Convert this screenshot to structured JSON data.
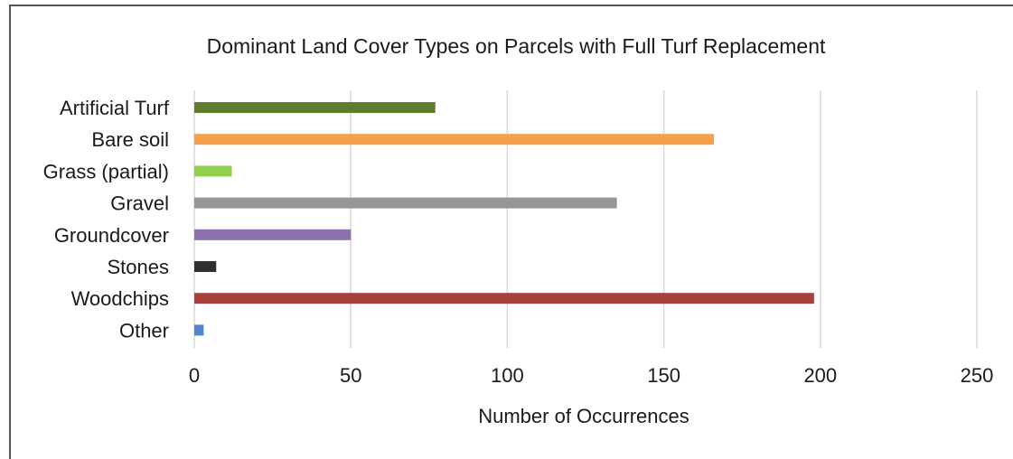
{
  "chart_data": {
    "type": "bar",
    "orientation": "horizontal",
    "title": "Dominant Land Cover Types on Parcels with Full Turf Replacement",
    "xlabel": "Number of Occurrences",
    "ylabel": "",
    "xlim": [
      0,
      250
    ],
    "x_ticks": [
      "0",
      "50",
      "100",
      "150",
      "200",
      "250"
    ],
    "grid": true,
    "legend": "none",
    "categories": [
      "Artificial Turf",
      "Bare soil",
      "Grass (partial)",
      "Gravel",
      "Groundcover",
      "Stones",
      "Woodchips",
      "Other"
    ],
    "values": [
      77,
      166,
      12,
      135,
      50,
      7,
      198,
      3
    ],
    "colors": [
      "#5f7d2e",
      "#f5a04d",
      "#92d050",
      "#969696",
      "#8e72b0",
      "#303030",
      "#a9403d",
      "#4f86cf"
    ]
  }
}
